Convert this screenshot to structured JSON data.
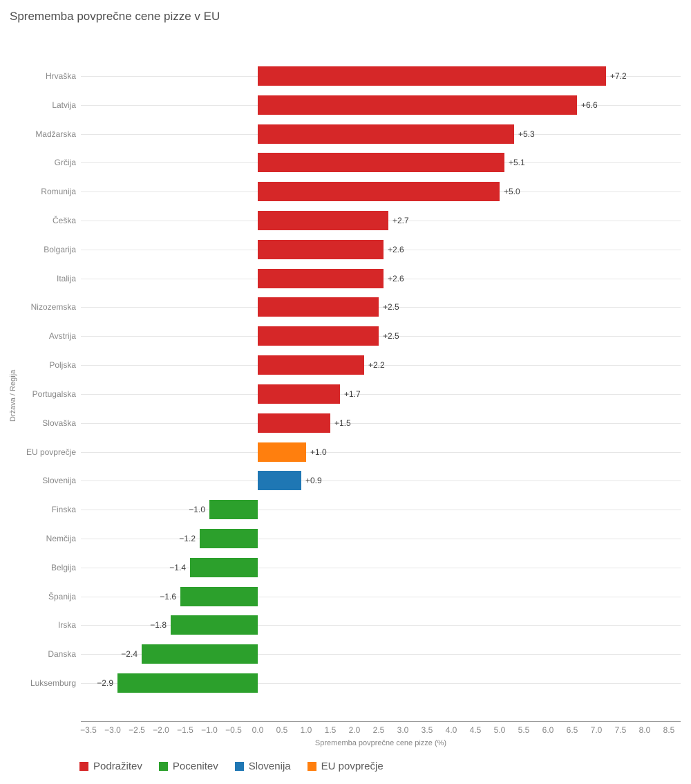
{
  "title": "Sprememba povprečne cene pizze v EU",
  "chart_data": {
    "type": "bar",
    "orientation": "horizontal",
    "title": "Sprememba povprečne cene pizze v EU",
    "xlabel": "Sprememba povprečne cene pizze (%)",
    "ylabel": "Država / Regija",
    "xlim": [
      -3.5,
      8.5
    ],
    "xticks": [
      -3.5,
      -3.0,
      -2.5,
      -2.0,
      -1.5,
      -1.0,
      -0.5,
      0.0,
      0.5,
      1.0,
      1.5,
      2.0,
      2.5,
      3.0,
      3.5,
      4.0,
      4.5,
      5.0,
      5.5,
      6.0,
      6.5,
      7.0,
      7.5,
      8.0,
      8.5
    ],
    "grid": "horizontal",
    "legend_position": "bottom",
    "colors": {
      "podrazitev": "#d62728",
      "pocenitev": "#2ca02c",
      "slovenija": "#1f77b4",
      "eu_povprecje": "#ff7f0e"
    },
    "rows": [
      {
        "label": "Hrvaška",
        "value": 7.2,
        "display": "+7.2",
        "group": "podrazitev"
      },
      {
        "label": "Latvija",
        "value": 6.6,
        "display": "+6.6",
        "group": "podrazitev"
      },
      {
        "label": "Madžarska",
        "value": 5.3,
        "display": "+5.3",
        "group": "podrazitev"
      },
      {
        "label": "Grčija",
        "value": 5.1,
        "display": "+5.1",
        "group": "podrazitev"
      },
      {
        "label": "Romunija",
        "value": 5.0,
        "display": "+5.0",
        "group": "podrazitev"
      },
      {
        "label": "Češka",
        "value": 2.7,
        "display": "+2.7",
        "group": "podrazitev"
      },
      {
        "label": "Bolgarija",
        "value": 2.6,
        "display": "+2.6",
        "group": "podrazitev"
      },
      {
        "label": "Italija",
        "value": 2.6,
        "display": "+2.6",
        "group": "podrazitev"
      },
      {
        "label": "Nizozemska",
        "value": 2.5,
        "display": "+2.5",
        "group": "podrazitev"
      },
      {
        "label": "Avstrija",
        "value": 2.5,
        "display": "+2.5",
        "group": "podrazitev"
      },
      {
        "label": "Poljska",
        "value": 2.2,
        "display": "+2.2",
        "group": "podrazitev"
      },
      {
        "label": "Portugalska",
        "value": 1.7,
        "display": "+1.7",
        "group": "podrazitev"
      },
      {
        "label": "Slovaška",
        "value": 1.5,
        "display": "+1.5",
        "group": "podrazitev"
      },
      {
        "label": "EU povprečje",
        "value": 1.0,
        "display": "+1.0",
        "group": "eu_povprecje"
      },
      {
        "label": "Slovenija",
        "value": 0.9,
        "display": "+0.9",
        "group": "slovenija"
      },
      {
        "label": "Finska",
        "value": -1.0,
        "display": "−1.0",
        "group": "pocenitev"
      },
      {
        "label": "Nemčija",
        "value": -1.2,
        "display": "−1.2",
        "group": "pocenitev"
      },
      {
        "label": "Belgija",
        "value": -1.4,
        "display": "−1.4",
        "group": "pocenitev"
      },
      {
        "label": "Španija",
        "value": -1.6,
        "display": "−1.6",
        "group": "pocenitev"
      },
      {
        "label": "Irska",
        "value": -1.8,
        "display": "−1.8",
        "group": "pocenitev"
      },
      {
        "label": "Danska",
        "value": -2.4,
        "display": "−2.4",
        "group": "pocenitev"
      },
      {
        "label": "Luksemburg",
        "value": -2.9,
        "display": "−2.9",
        "group": "pocenitev"
      }
    ],
    "legend": [
      {
        "label": "Podražitev",
        "group": "podrazitev"
      },
      {
        "label": "Pocenitev",
        "group": "pocenitev"
      },
      {
        "label": "Slovenija",
        "group": "slovenija"
      },
      {
        "label": "EU povprečje",
        "group": "eu_povprecje"
      }
    ]
  }
}
